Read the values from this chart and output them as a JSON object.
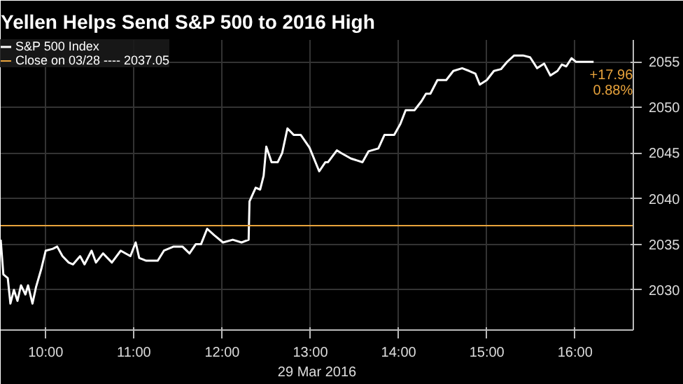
{
  "chart_data": {
    "type": "line",
    "title": "Yellen Helps Send S&P 500 to 2016 High",
    "xlabel": "29 Mar 2016",
    "series": [
      {
        "name": "S&P 500 Index",
        "color": "#ffffff",
        "x": [
          9.49,
          9.52,
          9.57,
          9.6,
          9.64,
          9.68,
          9.72,
          9.77,
          9.8,
          9.85,
          9.89,
          9.95,
          10.0,
          10.08,
          10.13,
          10.19,
          10.26,
          10.31,
          10.39,
          10.44,
          10.52,
          10.57,
          10.65,
          10.75,
          10.85,
          10.96,
          11.02,
          11.06,
          11.14,
          11.27,
          11.34,
          11.45,
          11.55,
          11.63,
          11.7,
          11.76,
          11.83,
          11.91,
          12.01,
          12.12,
          12.22,
          12.3,
          12.31,
          12.38,
          12.43,
          12.47,
          12.5,
          12.56,
          12.63,
          12.68,
          12.74,
          12.81,
          12.89,
          12.99,
          13.1,
          13.17,
          13.2,
          13.3,
          13.35,
          13.46,
          13.59,
          13.66,
          13.77,
          13.84,
          13.95,
          14.02,
          14.08,
          14.18,
          14.26,
          14.31,
          14.36,
          14.44,
          14.54,
          14.62,
          14.72,
          14.8,
          14.87,
          14.92,
          15.0,
          15.08,
          15.16,
          15.23,
          15.31,
          15.41,
          15.49,
          15.57,
          15.65,
          15.72,
          15.8,
          15.85,
          15.9,
          15.96,
          16.01,
          16.21
        ],
        "values": [
          2035.5,
          2031.7,
          2031.3,
          2028.5,
          2030,
          2028.8,
          2030.5,
          2029.5,
          2030.5,
          2028.5,
          2030.3,
          2032.3,
          2034.3,
          2034.5,
          2034.75,
          2033.7,
          2033,
          2032.8,
          2033.7,
          2032.8,
          2034.3,
          2033,
          2034,
          2033,
          2034.3,
          2033.7,
          2035.2,
          2033.5,
          2033.2,
          2033.2,
          2034.3,
          2034.75,
          2034.75,
          2034,
          2035,
          2035,
          2036.7,
          2036,
          2035.2,
          2035.5,
          2035.2,
          2035.5,
          2039.7,
          2041.2,
          2041,
          2042.5,
          2045.7,
          2044,
          2044,
          2045,
          2047.7,
          2047,
          2047,
          2045.6,
          2043,
          2044,
          2044,
          2045.3,
          2045,
          2044.4,
          2044,
          2045.2,
          2045.5,
          2047,
          2047,
          2048.2,
          2049.7,
          2049.7,
          2050.7,
          2051.5,
          2051.5,
          2053,
          2053,
          2054,
          2054.3,
          2054,
          2053.7,
          2052.5,
          2053,
          2054,
          2054.2,
          2055,
          2055.7,
          2055.7,
          2055.5,
          2054.3,
          2054.8,
          2053.5,
          2054,
          2054.7,
          2054.5,
          2055.4,
          2055,
          2055
        ]
      }
    ],
    "ref_lines": [
      {
        "axis": "y",
        "value": 2037.05,
        "label": "Close on 03/28 ---- 2037.05",
        "color": "#e8a33c"
      }
    ],
    "annotations": [
      "+17.96",
      "0.88%"
    ],
    "xlim": [
      9.49,
      16.66
    ],
    "ylim": [
      2025.6,
      2057.4
    ],
    "xticks": [
      {
        "value": 10,
        "label": "10:00"
      },
      {
        "value": 11,
        "label": "11:00"
      },
      {
        "value": 12,
        "label": "12:00"
      },
      {
        "value": 13,
        "label": "13:00"
      },
      {
        "value": 14,
        "label": "14:00"
      },
      {
        "value": 15,
        "label": "15:00"
      },
      {
        "value": 16,
        "label": "16:00"
      }
    ],
    "yticks": [
      2030,
      2035,
      2040,
      2045,
      2050,
      2055
    ],
    "grid": true,
    "legend": "top left",
    "line_style": "solid",
    "marker": "none"
  }
}
